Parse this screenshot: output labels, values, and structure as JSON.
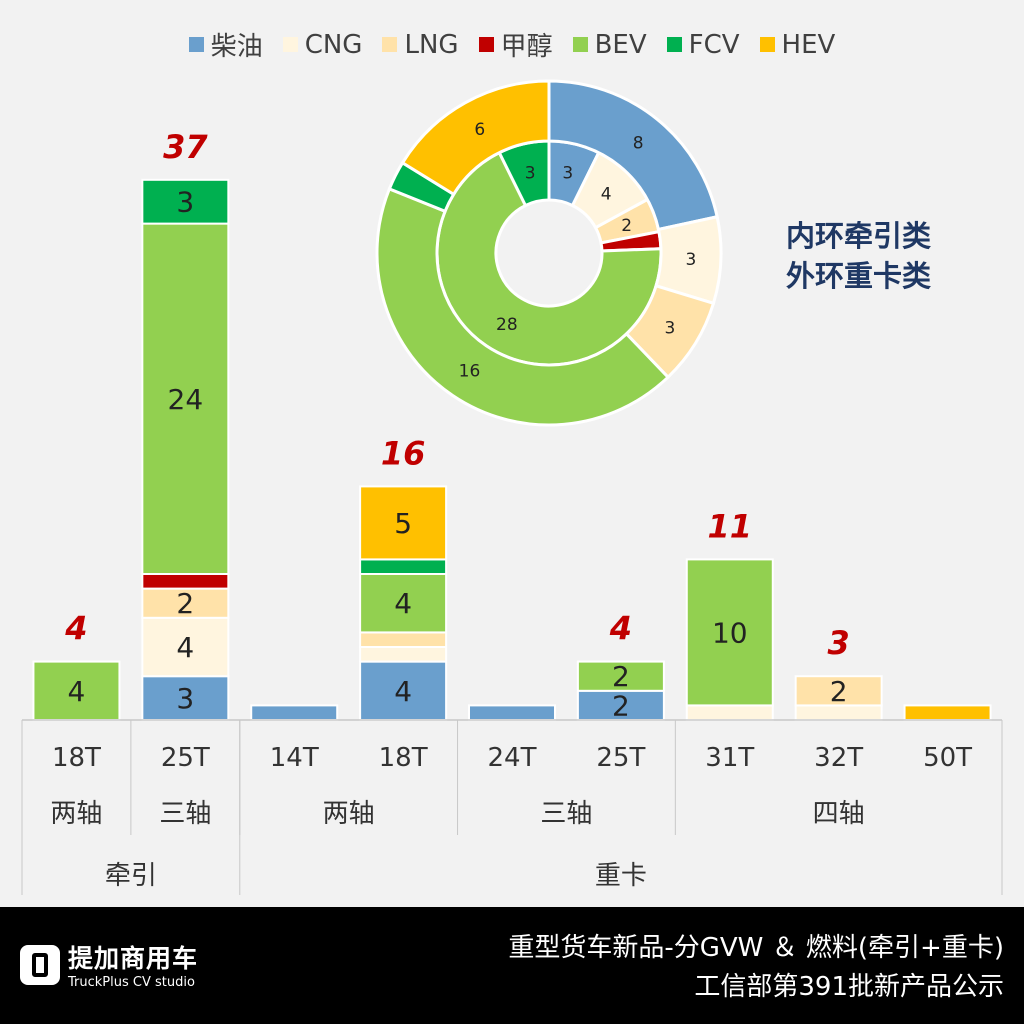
{
  "chart_data": [
    {
      "type": "bar",
      "stacked": true,
      "categories": [
        "18T",
        "25T",
        "14T",
        "18T",
        "24T",
        "25T",
        "31T",
        "32T",
        "50T"
      ],
      "axle_groups": [
        {
          "label": "两轴",
          "span": 1
        },
        {
          "label": "三轴",
          "span": 1
        },
        {
          "label": "两轴",
          "span": 2
        },
        {
          "label": "三轴",
          "span": 2
        },
        {
          "label": "四轴",
          "span": 3
        }
      ],
      "type_groups": [
        {
          "label": "牵引",
          "span": 2
        },
        {
          "label": "重卡",
          "span": 7
        }
      ],
      "series": [
        {
          "name": "柴油",
          "values": [
            0,
            3,
            1,
            4,
            1,
            2,
            0,
            0,
            0
          ]
        },
        {
          "name": "CNG",
          "values": [
            0,
            4,
            0,
            1,
            0,
            0,
            1,
            1,
            0
          ]
        },
        {
          "name": "LNG",
          "values": [
            0,
            2,
            0,
            1,
            0,
            0,
            0,
            2,
            0
          ]
        },
        {
          "name": "甲醇",
          "values": [
            0,
            1,
            0,
            0,
            0,
            0,
            0,
            0,
            0
          ]
        },
        {
          "name": "BEV",
          "values": [
            4,
            24,
            0,
            4,
            0,
            2,
            10,
            0,
            0
          ]
        },
        {
          "name": "FCV",
          "values": [
            0,
            3,
            0,
            1,
            0,
            0,
            0,
            0,
            0
          ]
        },
        {
          "name": "HEV",
          "values": [
            0,
            0,
            0,
            5,
            0,
            0,
            0,
            0,
            1
          ]
        }
      ],
      "totals": [
        "4",
        "37",
        "",
        "16",
        "",
        "4",
        "11",
        "3",
        ""
      ],
      "legend_position": "top",
      "grid": false
    },
    {
      "type": "pie",
      "donut": true,
      "rings": [
        {
          "ring": "inner",
          "values": [
            3,
            4,
            2,
            1,
            28,
            3,
            0
          ]
        },
        {
          "ring": "outer",
          "values": [
            8,
            3,
            3,
            0,
            16,
            1,
            6
          ]
        }
      ],
      "note_lines": [
        "内环牵引类",
        "外环重卡类"
      ]
    }
  ],
  "colors": [
    "#6a9fcd",
    "#fff5df",
    "#ffe2a9",
    "#c00000",
    "#92d050",
    "#00b050",
    "#ffc000"
  ],
  "legend": [
    "柴油",
    "CNG",
    "LNG",
    "甲醇",
    "BEV",
    "FCV",
    "HEV"
  ],
  "footer": {
    "title": "重型货车新品-分GVW ＆ 燃料(牵引+重卡)",
    "subtitle": "工信部第391批新产品公示",
    "logo_cn": "提加商用车",
    "logo_en": "TruckPlus CV studio"
  }
}
